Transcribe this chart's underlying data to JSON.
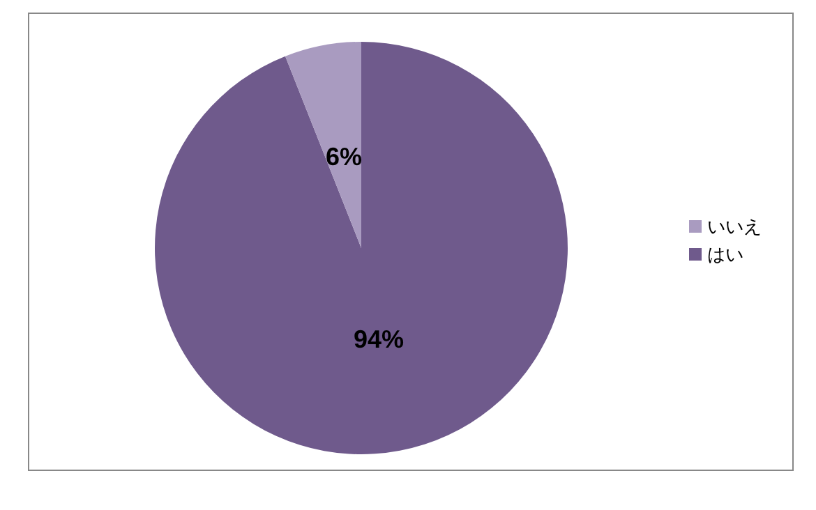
{
  "chart_data": {
    "type": "pie",
    "categories": [
      "はい",
      "いいえ"
    ],
    "values": [
      94,
      6
    ],
    "colors": [
      "#6f5a8c",
      "#a99bc0"
    ],
    "value_labels": [
      "94%",
      "6%"
    ],
    "legend": "right"
  }
}
